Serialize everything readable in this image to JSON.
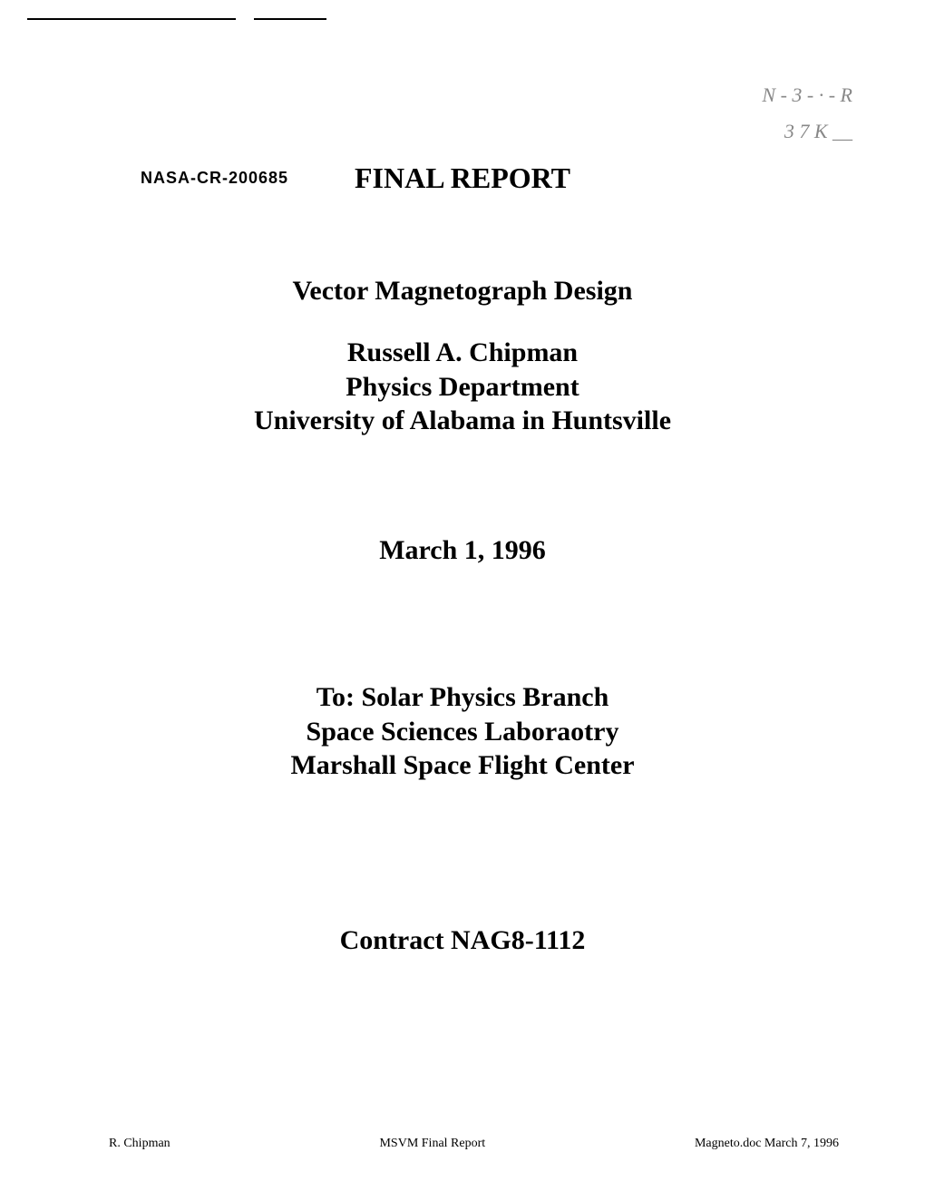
{
  "annotations": {
    "line1": "N - 3 - · - R",
    "line2": "3 7 K __"
  },
  "document_id": "NASA-CR-200685",
  "report_title": "FINAL REPORT",
  "main_title": "Vector Magnetograph Design",
  "author": {
    "name": "Russell A. Chipman",
    "department": "Physics Department",
    "institution": "University of Alabama in Huntsville"
  },
  "date": "March 1, 1996",
  "recipient": {
    "line1": "To: Solar Physics Branch",
    "line2": "Space Sciences Laboraotry",
    "line3": "Marshall Space Flight Center"
  },
  "contract": "Contract NAG8-1112",
  "footer": {
    "left": "R. Chipman",
    "center": "MSVM Final Report",
    "right": "Magneto.doc   March 7, 1996"
  },
  "styling": {
    "background_color": "#ffffff",
    "text_color": "#000000",
    "handwritten_color": "#888888",
    "title_fontsize": 32,
    "body_fontsize": 30,
    "footer_fontsize": 14,
    "document_id_fontsize": 18,
    "font_family_main": "Times New Roman",
    "font_family_id": "Arial"
  }
}
